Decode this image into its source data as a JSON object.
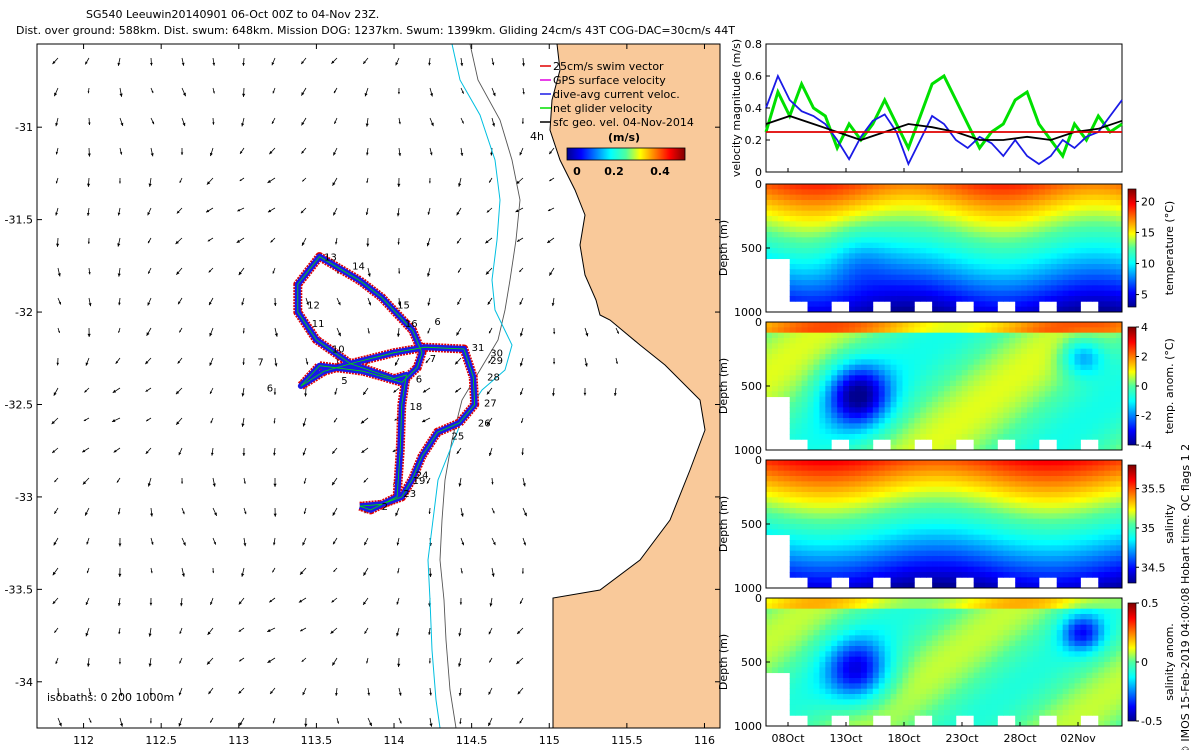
{
  "header": {
    "line1": "SG540 Leeuwin20140901 06-Oct 00Z to 04-Nov 23Z.",
    "line2": "Dist. over ground: 588km. Dist. swum: 648km. Mission DOG: 1237km. Swum: 1399km. Gliding 24cm/s 43T COG-DAC=30cm/s 44T"
  },
  "side_note": "© IMOS 15-Feb-2019 04:00:08 Hobart time. QC flags 1 2",
  "colors": {
    "land": "#f9c99a",
    "coast": "#000000",
    "isobath200": "#555555",
    "isobath1000": "#00bfe0",
    "swim_vector": "#e00000",
    "gps_velocity": "#e000e0",
    "dive_avg_current": "#1a1ae6",
    "net_velocity": "#00e000",
    "sfc_geo_vel": "#000000"
  },
  "chart_data": [
    {
      "type": "map",
      "xlim": [
        111.7,
        116.1
      ],
      "ylim": [
        -34.25,
        -30.55
      ],
      "x_ticks": [
        "112",
        "112.5",
        "113",
        "113.5",
        "114",
        "114.5",
        "115",
        "115.5",
        "116"
      ],
      "y_ticks": [
        "-31",
        "-31.5",
        "-32",
        "-32.5",
        "-33",
        "-33.5",
        "-34"
      ],
      "legend": [
        {
          "label": "25cm/s swim vector",
          "color": "#e00000"
        },
        {
          "label": "GPS surface velocity",
          "color": "#e000e0"
        },
        {
          "label": "dive-avg current veloc.",
          "color": "#1a1ae6"
        },
        {
          "label": "net glider velocity",
          "color": "#00e000"
        },
        {
          "label": "sfc geo. vel. 04-Nov-2014",
          "color": "#000000"
        }
      ],
      "colorbar": {
        "label": "(m/s)",
        "ticks": [
          "0",
          "0.2",
          "0.4"
        ],
        "range": [
          0,
          0.5
        ]
      },
      "isobath_note": "isobaths: 0   200  1000m",
      "annotation_4h": "4h",
      "track": [
        [
          113.78,
          -33.05
        ],
        [
          113.92,
          -33.04
        ],
        [
          114.05,
          -33.0
        ],
        [
          114.12,
          -32.9
        ],
        [
          114.18,
          -32.78
        ],
        [
          114.28,
          -32.65
        ],
        [
          114.42,
          -32.6
        ],
        [
          114.52,
          -32.5
        ],
        [
          114.51,
          -32.35
        ],
        [
          114.45,
          -32.2
        ],
        [
          114.2,
          -32.19
        ],
        [
          114.0,
          -32.22
        ],
        [
          113.76,
          -32.27
        ],
        [
          113.55,
          -32.32
        ],
        [
          113.4,
          -32.4
        ],
        [
          113.52,
          -32.29
        ],
        [
          113.8,
          -32.32
        ],
        [
          114.05,
          -32.38
        ],
        [
          114.15,
          -32.3
        ],
        [
          114.18,
          -32.22
        ],
        [
          114.12,
          -32.1
        ],
        [
          113.92,
          -31.92
        ],
        [
          113.78,
          -31.83
        ],
        [
          113.52,
          -31.7
        ],
        [
          113.38,
          -31.85
        ],
        [
          113.38,
          -32.0
        ],
        [
          113.5,
          -32.15
        ],
        [
          113.72,
          -32.28
        ],
        [
          114.0,
          -32.36
        ],
        [
          114.08,
          -32.34
        ],
        [
          114.05,
          -32.5
        ],
        [
          114.04,
          -32.75
        ],
        [
          114.02,
          -33.0
        ],
        [
          113.85,
          -33.07
        ],
        [
          113.78,
          -33.05
        ]
      ],
      "day_labels": [
        {
          "t": "13",
          "lon": 113.55,
          "lat": -31.72
        },
        {
          "t": "14",
          "lon": 113.73,
          "lat": -31.77
        },
        {
          "t": "15",
          "lon": 114.02,
          "lat": -31.98
        },
        {
          "t": "12",
          "lon": 113.44,
          "lat": -31.98
        },
        {
          "t": "11",
          "lon": 113.47,
          "lat": -32.08
        },
        {
          "t": "16",
          "lon": 114.07,
          "lat": -32.08
        },
        {
          "t": "6",
          "lon": 114.26,
          "lat": -32.07
        },
        {
          "t": "10",
          "lon": 113.6,
          "lat": -32.22
        },
        {
          "t": "7",
          "lon": 113.12,
          "lat": -32.29
        },
        {
          "t": "7",
          "lon": 114.23,
          "lat": -32.27
        },
        {
          "t": "5",
          "lon": 113.66,
          "lat": -32.39
        },
        {
          "t": "6",
          "lon": 113.18,
          "lat": -32.43
        },
        {
          "t": "6",
          "lon": 114.14,
          "lat": -32.38
        },
        {
          "t": "31",
          "lon": 114.5,
          "lat": -32.21
        },
        {
          "t": "30",
          "lon": 114.62,
          "lat": -32.24
        },
        {
          "t": "29",
          "lon": 114.62,
          "lat": -32.28
        },
        {
          "t": "28",
          "lon": 114.6,
          "lat": -32.37
        },
        {
          "t": "27",
          "lon": 114.58,
          "lat": -32.51
        },
        {
          "t": "18",
          "lon": 114.1,
          "lat": -32.53
        },
        {
          "t": "26",
          "lon": 114.54,
          "lat": -32.62
        },
        {
          "t": "25",
          "lon": 114.37,
          "lat": -32.69
        },
        {
          "t": "24",
          "lon": 114.14,
          "lat": -32.9
        },
        {
          "t": "19",
          "lon": 114.12,
          "lat": -32.93
        },
        {
          "t": "23",
          "lon": 114.06,
          "lat": -33.0
        },
        {
          "t": "2",
          "lon": 113.92,
          "lat": -33.07
        }
      ]
    },
    {
      "type": "line",
      "ylabel": "velocity magnitude (m/s)",
      "ylim": [
        0,
        0.8
      ],
      "y_ticks": [
        "0",
        "0.2",
        "0.4",
        "0.6",
        "0.8"
      ],
      "x_days": [
        0,
        30
      ],
      "series": [
        {
          "color": "#00e000",
          "x": [
            0,
            1,
            2,
            3,
            4,
            5,
            6,
            7,
            8,
            9,
            10,
            11,
            12,
            13,
            14,
            15,
            16,
            17,
            18,
            19,
            20,
            21,
            22,
            23,
            24,
            25,
            26,
            27,
            28,
            29,
            30
          ],
          "y": [
            0.25,
            0.5,
            0.35,
            0.55,
            0.4,
            0.35,
            0.15,
            0.3,
            0.2,
            0.3,
            0.45,
            0.3,
            0.15,
            0.35,
            0.55,
            0.6,
            0.45,
            0.3,
            0.15,
            0.25,
            0.3,
            0.45,
            0.5,
            0.3,
            0.2,
            0.1,
            0.3,
            0.2,
            0.35,
            0.25,
            0.3
          ]
        },
        {
          "color": "#1a1ae6",
          "x": [
            0,
            1,
            2,
            3,
            4,
            5,
            6,
            7,
            8,
            9,
            10,
            11,
            12,
            13,
            14,
            15,
            16,
            17,
            18,
            19,
            20,
            21,
            22,
            23,
            24,
            25,
            26,
            27,
            28,
            29,
            30
          ],
          "y": [
            0.4,
            0.6,
            0.45,
            0.38,
            0.35,
            0.3,
            0.2,
            0.08,
            0.22,
            0.32,
            0.36,
            0.25,
            0.05,
            0.2,
            0.35,
            0.3,
            0.2,
            0.15,
            0.22,
            0.18,
            0.1,
            0.2,
            0.1,
            0.05,
            0.1,
            0.2,
            0.15,
            0.22,
            0.25,
            0.35,
            0.45
          ]
        },
        {
          "color": "#000000",
          "x": [
            0,
            2,
            4,
            6,
            8,
            10,
            12,
            14,
            16,
            18,
            20,
            22,
            24,
            26,
            28,
            30
          ],
          "y": [
            0.3,
            0.35,
            0.3,
            0.25,
            0.2,
            0.25,
            0.3,
            0.28,
            0.25,
            0.2,
            0.2,
            0.22,
            0.2,
            0.25,
            0.27,
            0.32
          ]
        },
        {
          "color": "#e00000",
          "x": [
            0,
            30
          ],
          "y": [
            0.25,
            0.25
          ]
        }
      ]
    },
    {
      "type": "heatmap",
      "panels": [
        {
          "ylabel": "Depth (m)",
          "cbar_label": "temperature (°C)",
          "y_ticks": [
            "0",
            "500",
            "1000"
          ],
          "cbar_ticks": [
            "20",
            "15",
            "10",
            "5"
          ],
          "cbar_range": [
            3,
            22
          ]
        },
        {
          "ylabel": "Depth (m)",
          "cbar_label": "temp. anom. (°C)",
          "y_ticks": [
            "0",
            "500",
            "1000"
          ],
          "cbar_ticks": [
            "4",
            "2",
            "0",
            "-2",
            "-4"
          ],
          "cbar_range": [
            -4,
            4
          ]
        },
        {
          "ylabel": "Depth (m)",
          "cbar_label": "salinity",
          "y_ticks": [
            "0",
            "500",
            "1000"
          ],
          "cbar_ticks": [
            "35.5",
            "35",
            "34.5"
          ],
          "cbar_range": [
            34.3,
            35.8
          ]
        },
        {
          "ylabel": "Depth (m)",
          "cbar_label": "salinity anom.",
          "y_ticks": [
            "0",
            "500",
            "1000"
          ],
          "cbar_ticks": [
            "0.5",
            "0",
            "-0.5"
          ],
          "cbar_range": [
            -0.5,
            0.5
          ]
        }
      ],
      "x_ticks": [
        "08Oct",
        "13Oct",
        "18Oct",
        "23Oct",
        "28Oct",
        "02Nov"
      ]
    }
  ]
}
